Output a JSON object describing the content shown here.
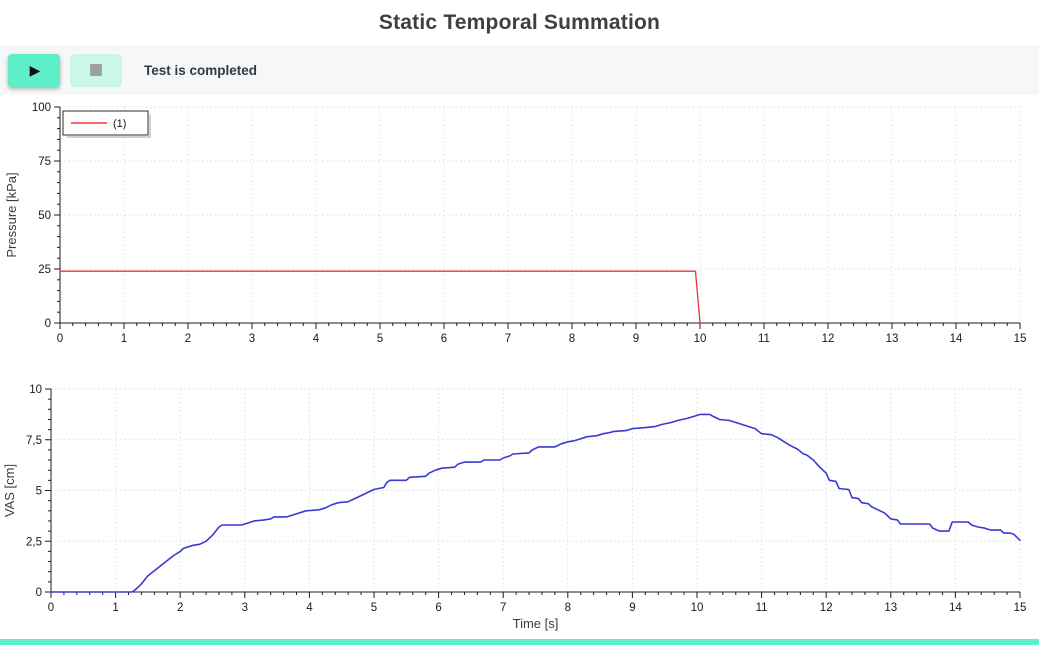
{
  "header": {
    "title": "Static Temporal Summation"
  },
  "toolbar": {
    "play_button": {
      "icon": "play-icon",
      "glyph": "▶"
    },
    "stop_button": {
      "icon": "stop-icon"
    },
    "status_text": "Test is completed"
  },
  "colors": {
    "accent": "#5eefc9",
    "accent_light": "#c9f8ea",
    "toolbar_bg": "#f6f8f8",
    "pressure_line": "#f03232",
    "vas_line": "#3a3ad2",
    "grid": "#dcdcdc"
  },
  "chart_data": [
    {
      "type": "line",
      "title": "",
      "xlabel": "",
      "ylabel": "Pressure [kPa]",
      "xlim": [
        0,
        15
      ],
      "ylim": [
        0,
        100
      ],
      "grid": true,
      "x_minor_step": 0.2,
      "y_minor_step": 5,
      "x_ticks": {
        "values": [
          0,
          1,
          2,
          3,
          4,
          5,
          6,
          7,
          8,
          9,
          10,
          11,
          12,
          13,
          14,
          15
        ],
        "labels": [
          "0",
          "1",
          "2",
          "3",
          "4",
          "5",
          "6",
          "7",
          "8",
          "9",
          "10",
          "11",
          "12",
          "13",
          "14",
          "15"
        ]
      },
      "y_ticks": {
        "values": [
          0,
          25,
          50,
          75,
          100
        ],
        "labels": [
          "0",
          "25",
          "50",
          "75",
          "100"
        ]
      },
      "legend": {
        "position": "top-left",
        "entries": [
          {
            "label": "(1)"
          }
        ]
      },
      "series": [
        {
          "name": "(1)",
          "color": "#f03232",
          "width": 1.3,
          "points": [
            [
              0,
              24
            ],
            [
              9.93,
              24
            ],
            [
              10,
              0
            ]
          ]
        }
      ]
    },
    {
      "type": "line",
      "title": "",
      "xlabel": "Time [s]",
      "ylabel": "VAS [cm]",
      "xlim": [
        0,
        15
      ],
      "ylim": [
        0,
        10
      ],
      "grid": true,
      "x_minor_step": 0.2,
      "y_minor_step": 0.5,
      "x_ticks": {
        "values": [
          0,
          1,
          2,
          3,
          4,
          5,
          6,
          7,
          8,
          9,
          10,
          11,
          12,
          13,
          14,
          15
        ],
        "labels": [
          "0",
          "1",
          "2",
          "3",
          "4",
          "5",
          "6",
          "7",
          "8",
          "9",
          "10",
          "11",
          "12",
          "13",
          "14",
          "15"
        ]
      },
      "y_ticks": {
        "values": [
          0,
          2.5,
          5,
          7.5,
          10
        ],
        "labels": [
          "0",
          "2,5",
          "5",
          "7,5",
          "10"
        ]
      },
      "legend": null,
      "series": [
        {
          "name": "VAS",
          "color": "#3a3ad2",
          "width": 1.6,
          "points": [
            [
              0,
              0
            ],
            [
              1.25,
              0
            ],
            [
              1.3,
              0.1
            ],
            [
              1.4,
              0.4
            ],
            [
              1.5,
              0.8
            ],
            [
              1.6,
              1.05
            ],
            [
              1.7,
              1.3
            ],
            [
              1.8,
              1.55
            ],
            [
              1.9,
              1.8
            ],
            [
              2,
              2
            ],
            [
              2.05,
              2.15
            ],
            [
              2.1,
              2.2
            ],
            [
              2.2,
              2.3
            ],
            [
              2.3,
              2.35
            ],
            [
              2.4,
              2.5
            ],
            [
              2.5,
              2.8
            ],
            [
              2.6,
              3.2
            ],
            [
              2.65,
              3.3
            ],
            [
              2.95,
              3.3
            ],
            [
              3.05,
              3.4
            ],
            [
              3.15,
              3.5
            ],
            [
              3.3,
              3.55
            ],
            [
              3.4,
              3.6
            ],
            [
              3.45,
              3.7
            ],
            [
              3.65,
              3.7
            ],
            [
              3.75,
              3.8
            ],
            [
              3.85,
              3.9
            ],
            [
              3.95,
              4
            ],
            [
              4.15,
              4.05
            ],
            [
              4.25,
              4.15
            ],
            [
              4.35,
              4.3
            ],
            [
              4.45,
              4.4
            ],
            [
              4.6,
              4.45
            ],
            [
              4.7,
              4.6
            ],
            [
              4.8,
              4.75
            ],
            [
              4.9,
              4.9
            ],
            [
              5,
              5.05
            ],
            [
              5.15,
              5.15
            ],
            [
              5.2,
              5.4
            ],
            [
              5.25,
              5.5
            ],
            [
              5.5,
              5.5
            ],
            [
              5.55,
              5.65
            ],
            [
              5.8,
              5.7
            ],
            [
              5.85,
              5.85
            ],
            [
              5.95,
              6
            ],
            [
              6.05,
              6.1
            ],
            [
              6.25,
              6.15
            ],
            [
              6.3,
              6.3
            ],
            [
              6.4,
              6.4
            ],
            [
              6.65,
              6.4
            ],
            [
              6.7,
              6.5
            ],
            [
              6.95,
              6.5
            ],
            [
              7,
              6.6
            ],
            [
              7.1,
              6.7
            ],
            [
              7.15,
              6.8
            ],
            [
              7.4,
              6.85
            ],
            [
              7.45,
              7
            ],
            [
              7.55,
              7.15
            ],
            [
              7.8,
              7.15
            ],
            [
              7.9,
              7.3
            ],
            [
              8,
              7.4
            ],
            [
              8.1,
              7.45
            ],
            [
              8.2,
              7.55
            ],
            [
              8.3,
              7.65
            ],
            [
              8.45,
              7.7
            ],
            [
              8.55,
              7.8
            ],
            [
              8.65,
              7.85
            ],
            [
              8.7,
              7.9
            ],
            [
              8.9,
              7.95
            ],
            [
              9,
              8.05
            ],
            [
              9.2,
              8.1
            ],
            [
              9.35,
              8.15
            ],
            [
              9.45,
              8.25
            ],
            [
              9.6,
              8.35
            ],
            [
              9.7,
              8.45
            ],
            [
              9.85,
              8.55
            ],
            [
              9.95,
              8.65
            ],
            [
              10,
              8.7
            ],
            [
              10.05,
              8.75
            ],
            [
              10.2,
              8.75
            ],
            [
              10.25,
              8.65
            ],
            [
              10.35,
              8.5
            ],
            [
              10.5,
              8.45
            ],
            [
              10.6,
              8.35
            ],
            [
              10.7,
              8.25
            ],
            [
              10.8,
              8.15
            ],
            [
              10.9,
              8.05
            ],
            [
              11,
              7.8
            ],
            [
              11.15,
              7.75
            ],
            [
              11.25,
              7.6
            ],
            [
              11.35,
              7.4
            ],
            [
              11.45,
              7.2
            ],
            [
              11.55,
              7.05
            ],
            [
              11.65,
              6.8
            ],
            [
              11.7,
              6.75
            ],
            [
              11.8,
              6.5
            ],
            [
              11.9,
              6.15
            ],
            [
              12,
              5.85
            ],
            [
              12.05,
              5.5
            ],
            [
              12.15,
              5.45
            ],
            [
              12.2,
              5.1
            ],
            [
              12.35,
              5.05
            ],
            [
              12.4,
              4.65
            ],
            [
              12.5,
              4.6
            ],
            [
              12.55,
              4.4
            ],
            [
              12.65,
              4.35
            ],
            [
              12.7,
              4.2
            ],
            [
              12.8,
              4.05
            ],
            [
              12.9,
              3.9
            ],
            [
              13,
              3.6
            ],
            [
              13.1,
              3.55
            ],
            [
              13.15,
              3.35
            ],
            [
              13.6,
              3.35
            ],
            [
              13.65,
              3.15
            ],
            [
              13.75,
              3
            ],
            [
              13.9,
              3
            ],
            [
              13.95,
              3.45
            ],
            [
              14.2,
              3.45
            ],
            [
              14.25,
              3.3
            ],
            [
              14.35,
              3.2
            ],
            [
              14.45,
              3.15
            ],
            [
              14.55,
              3.05
            ],
            [
              14.7,
              3.05
            ],
            [
              14.75,
              2.9
            ],
            [
              14.85,
              2.9
            ],
            [
              14.9,
              2.85
            ],
            [
              15,
              2.55
            ]
          ]
        }
      ]
    }
  ]
}
